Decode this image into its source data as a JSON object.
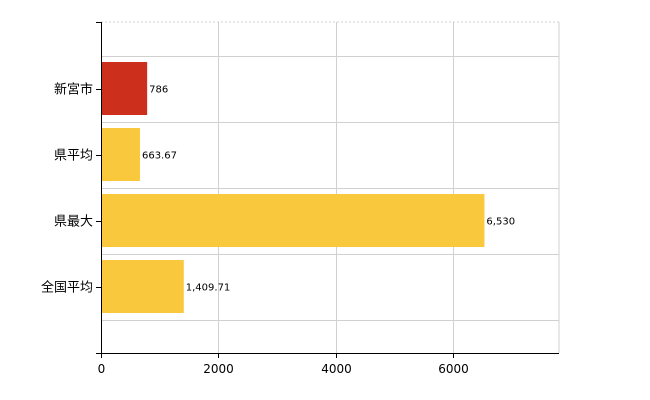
{
  "chart_data": {
    "type": "bar",
    "orientation": "horizontal",
    "categories": [
      "新宮市",
      "県平均",
      "県最大",
      "全国平均"
    ],
    "values": [
      786,
      663.67,
      6530,
      1409.71
    ],
    "value_labels": [
      "786",
      "663.67",
      "6,530",
      "1,409.71"
    ],
    "bar_colors": [
      "#cc2f1b",
      "#f9c83c",
      "#f9c83c",
      "#f9c83c"
    ],
    "xlim": [
      0,
      7800
    ],
    "xticks": [
      0,
      2000,
      4000,
      6000
    ],
    "xtick_labels": [
      "0",
      "2000",
      "4000",
      "6000"
    ],
    "grid": true
  }
}
